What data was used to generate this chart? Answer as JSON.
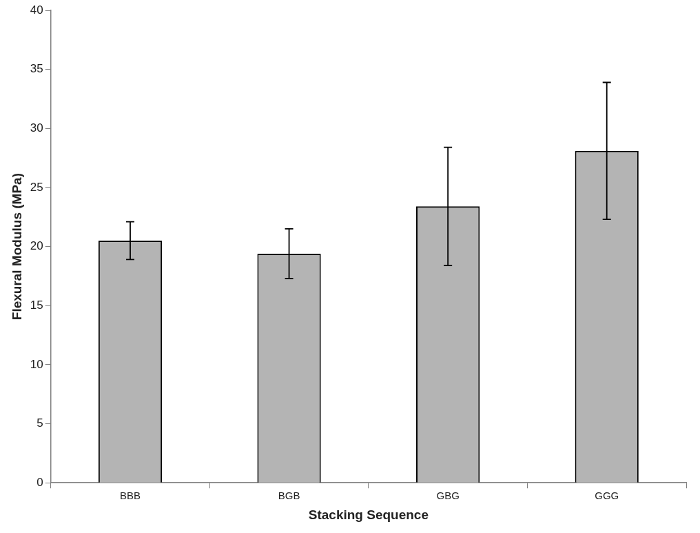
{
  "chart_data": {
    "type": "bar",
    "xlabel": "Stacking Sequence",
    "ylabel": "Flexural Modulus (MPa)",
    "categories": [
      "BBB",
      "BGB",
      "GBG",
      "GGG"
    ],
    "values": [
      20.5,
      19.4,
      23.4,
      28.1
    ],
    "errors": [
      1.6,
      2.1,
      5.0,
      5.8
    ],
    "color": "#b4b4b4",
    "ylim": [
      0,
      40
    ],
    "yticks": [
      0,
      5,
      10,
      15,
      20,
      25,
      30,
      35,
      40
    ],
    "grid": false,
    "legend": false
  }
}
